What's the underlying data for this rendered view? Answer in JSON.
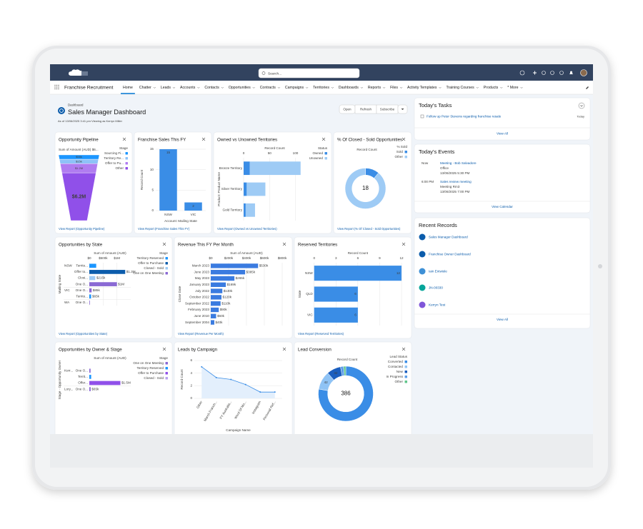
{
  "topbar": {
    "search": "Search..."
  },
  "nav": {
    "app": "Franchise Recruitment",
    "items": [
      "Home",
      "Chatter",
      "Leads",
      "Accounts",
      "Contacts",
      "Opportunities",
      "Contracts",
      "Campaigns",
      "Territories",
      "Dashboards",
      "Reports",
      "Files",
      "Activity Templates",
      "Training Courses",
      "Products",
      "* More"
    ]
  },
  "dashboard": {
    "label": "Dashboard",
    "title": "Sales Manager Dashboard",
    "subtitle": "As of 13/06/2025 3:41 pm·Viewing as Kerryn Miller",
    "buttons": [
      "Open",
      "Refresh",
      "Subscribe"
    ]
  },
  "widgets": [
    {
      "title": "Opportunity Pipeline",
      "type": "funnel",
      "axis_title": "Sum of Amount (AUD) $6...",
      "legend_title": "Stage",
      "categories": [
        "Sourcing Fi...",
        "Territory Re...",
        "Offer to Pu...",
        "Other"
      ],
      "values": [
        58000,
        15000,
        1200000,
        6200000
      ],
      "value_labels": [
        "$58k",
        "$15k",
        "$1.2M",
        "$6.2M"
      ],
      "colors": [
        "#1b96ff",
        "#8ec2f7",
        "#b07cf0",
        "#9050e9"
      ],
      "link": "View Report (Opportunity Pipeline)"
    },
    {
      "title": "Franchise Sales This FY",
      "type": "bar",
      "categories": [
        "NSW",
        "VIC"
      ],
      "values": [
        15,
        2
      ],
      "color": "#3a8de6",
      "ylim": [
        0,
        15
      ],
      "yticks": [
        0,
        5,
        10,
        15
      ],
      "ylabel": "Record Count",
      "xlabel": "Account: Mailing State",
      "link": "View Report (Franchise Sales This FY)"
    },
    {
      "title": "Owned vs Unowned Territories",
      "type": "stacked_hbar",
      "categories": [
        "Bronze Territory",
        "Silver Territory",
        "Gold Territory"
      ],
      "series": [
        {
          "name": "Owned",
          "color": "#3a8de6",
          "values": [
            12,
            6,
            4
          ]
        },
        {
          "name": "Unowned",
          "color": "#9ecbf5",
          "values": [
            98,
            36,
            18
          ]
        }
      ],
      "xlim": [
        0,
        120
      ],
      "xticks": [
        0,
        50,
        100
      ],
      "xlabel": "Record Count",
      "ylabel": "Product: Product Name",
      "legend_title": "Status",
      "link": "View Report (Owned vs Unowned Territories)"
    },
    {
      "title": "% Of Closed - Sold Opportunities",
      "type": "donut",
      "subtitle": "Record Count",
      "legend_title": "% Sold",
      "categories": [
        "Sold",
        "Other"
      ],
      "values": [
        2,
        16
      ],
      "colors": [
        "#3a8de6",
        "#9ecbf5"
      ],
      "center_value": 18,
      "link": "View Report (% Of Closed - Sold Opportunities)"
    },
    {
      "title": "Opportunities by State",
      "type": "grouped_hbar",
      "xlabel": "Sum of Amount (AUD)",
      "ylabel": "Mailing State",
      "legend_title": "Stage",
      "legend": [
        {
          "name": "Territory Reserved",
          "color": "#1b96ff"
        },
        {
          "name": "Offer to Purchase",
          "color": "#0b5cab"
        },
        {
          "name": "Closed - Sold",
          "color": "#9ecbf5"
        },
        {
          "name": "One on One Meeting",
          "color": "#8a69d4"
        }
      ],
      "xlim": [
        0,
        1500000
      ],
      "xticks": [
        {
          "value": 0,
          "label": "$0"
        },
        {
          "value": 500000,
          "label": "$500k"
        },
        {
          "value": 1000000,
          "label": "$1M"
        }
      ],
      "groups": [
        {
          "name": "NSW",
          "rows": [
            {
              "label": "Territo...",
              "value": 250000,
              "color": "#1b96ff"
            },
            {
              "label": "Offer to...",
              "value": 1300000,
              "value_label": "$1.3M",
              "color": "#0b5cab"
            },
            {
              "label": "Closi...",
              "value": 215000,
              "value_label": "$215k",
              "color": "#9ecbf5"
            },
            {
              "label": "One O...",
              "value": 1000000,
              "value_label": "$1M",
              "color": "#8a69d4"
            }
          ]
        },
        {
          "name": "VIC",
          "rows": [
            {
              "label": "One O...",
              "value": 85000,
              "value_label": "$85k",
              "color": "#8a69d4"
            },
            {
              "label": "Territo...",
              "value": 65000,
              "value_label": "$65k",
              "color": "#1b96ff"
            }
          ]
        },
        {
          "name": "WA",
          "rows": [
            {
              "label": "One O...",
              "value": 20000,
              "color": "#8a69d4"
            }
          ]
        }
      ],
      "link": "View Report (Opportunities by State)"
    },
    {
      "title": "Revenue This FY Per Month",
      "type": "hbar",
      "xlabel": "Sum of Amount (AUD)",
      "ylabel": "Close Date",
      "categories": [
        "March 2023",
        "June 2023",
        "May 2023",
        "January 2023",
        "July 2022",
        "October 2022",
        "September 2022",
        "February 2023",
        "June 2010",
        "September 2004"
      ],
      "values": [
        530000,
        385000,
        265000,
        169000,
        130000,
        120000,
        110000,
        90000,
        60000,
        40000
      ],
      "value_labels": [
        "$530k",
        "$385k",
        "$265k",
        "$169k",
        "$130k",
        "$120k",
        "$110k",
        "$90k",
        "$60k",
        "$40k"
      ],
      "color": "#3a7be0",
      "xlim": [
        0,
        800000
      ],
      "xticks": [
        {
          "value": 0,
          "label": "$0"
        },
        {
          "value": 200000,
          "label": "$200k"
        },
        {
          "value": 400000,
          "label": "$400k"
        },
        {
          "value": 600000,
          "label": "$600k"
        },
        {
          "value": 800000,
          "label": "$800k"
        }
      ],
      "link": "View Report (Revenue Per Month)"
    },
    {
      "title": "Reserved Territories",
      "type": "hbar",
      "xlabel": "Record Count",
      "ylabel": "State",
      "categories": [
        "NSW",
        "QLD",
        "VIC"
      ],
      "values": [
        12,
        6,
        6
      ],
      "color": "#3a8de6",
      "xlim": [
        0,
        12
      ],
      "xticks": [
        0,
        3,
        6,
        9,
        12
      ],
      "labels_inside": true,
      "link": "View Report (Reserved Territories)"
    },
    {
      "title": "Opportunities by Owner & Stage",
      "type": "grouped_hbar",
      "xlabel": "Sum of Amount (AUD)",
      "ylabel": "Stage · Opportunity Owner",
      "legend_title": "Stage",
      "legend": [
        {
          "name": "One on One Meeting",
          "color": "#8a69d4"
        },
        {
          "name": "Territory Reserved",
          "color": "#1b96ff"
        },
        {
          "name": "Offer to Purchase",
          "color": "#9050e9"
        },
        {
          "name": "Closed - Sold",
          "color": "#b9a3ee"
        }
      ],
      "xlim": [
        0,
        2000000
      ],
      "groups": [
        {
          "name": "Kerr...",
          "rows": [
            {
              "label": "One O...",
              "value": 60000,
              "color": "#8a69d4"
            },
            {
              "label": "Territ...",
              "value": 90000,
              "color": "#1b96ff"
            },
            {
              "label": "Offer...",
              "value": 1500000,
              "value_label": "$1.5M",
              "color": "#9050e9"
            }
          ]
        },
        {
          "name": "Lory...",
          "rows": [
            {
              "label": "One O...",
              "value": 65000,
              "value_label": "$65k",
              "color": "#8a69d4"
            }
          ]
        }
      ]
    },
    {
      "title": "Leads by Campaign",
      "type": "line",
      "categories": [
        "Other",
        "March Franch...",
        "FY Australia...",
        "Word Of Mo...",
        "Instagram",
        "Personal Ref..."
      ],
      "values": [
        5,
        3.3,
        3,
        2.2,
        1,
        1
      ],
      "color": "#3a8de6",
      "ylim": [
        0,
        6
      ],
      "yticks": [
        0,
        2,
        4,
        6
      ],
      "ylabel": "Record Count",
      "xlabel": "Campaign Name"
    },
    {
      "title": "Lead Conversion",
      "type": "donut",
      "subtitle": "Record Count",
      "legend_title": "Lead Status",
      "categories": [
        "Converted",
        "Contacted",
        "New",
        "In Progress",
        "Other"
      ],
      "values": [
        300,
        42,
        32,
        7,
        5
      ],
      "colors": [
        "#3a8de6",
        "#8fc3f5",
        "#1b5fbf",
        "#5b9ee8",
        "#5fc58a"
      ],
      "center_value": 386,
      "slice_labels": true
    }
  ],
  "sidebar": {
    "tasks": {
      "title": "Today's Tasks",
      "items": [
        {
          "text": "Follow up Peter Stevens regarding franchise resale",
          "due": "Today"
        }
      ],
      "link": "View All"
    },
    "events": {
      "title": "Today's Events",
      "items": [
        {
          "time": "Now",
          "title": "Meeting - Bob Salvadore",
          "location": "Office",
          "when": "13/06/2025 5:30 PM"
        },
        {
          "time": "6:00 PM",
          "title": "Sales review meeting",
          "location": "Meeting Rm3",
          "when": "13/06/2025 7:00 PM"
        }
      ],
      "link": "View Calendar"
    },
    "recent": {
      "title": "Recent Records",
      "items": [
        "Sales Manager Dashboard",
        "Franchise Owner Dashboard",
        "Iain Entwisle",
        "JN-00330",
        "Kerryn Test"
      ],
      "link": "View All"
    }
  }
}
